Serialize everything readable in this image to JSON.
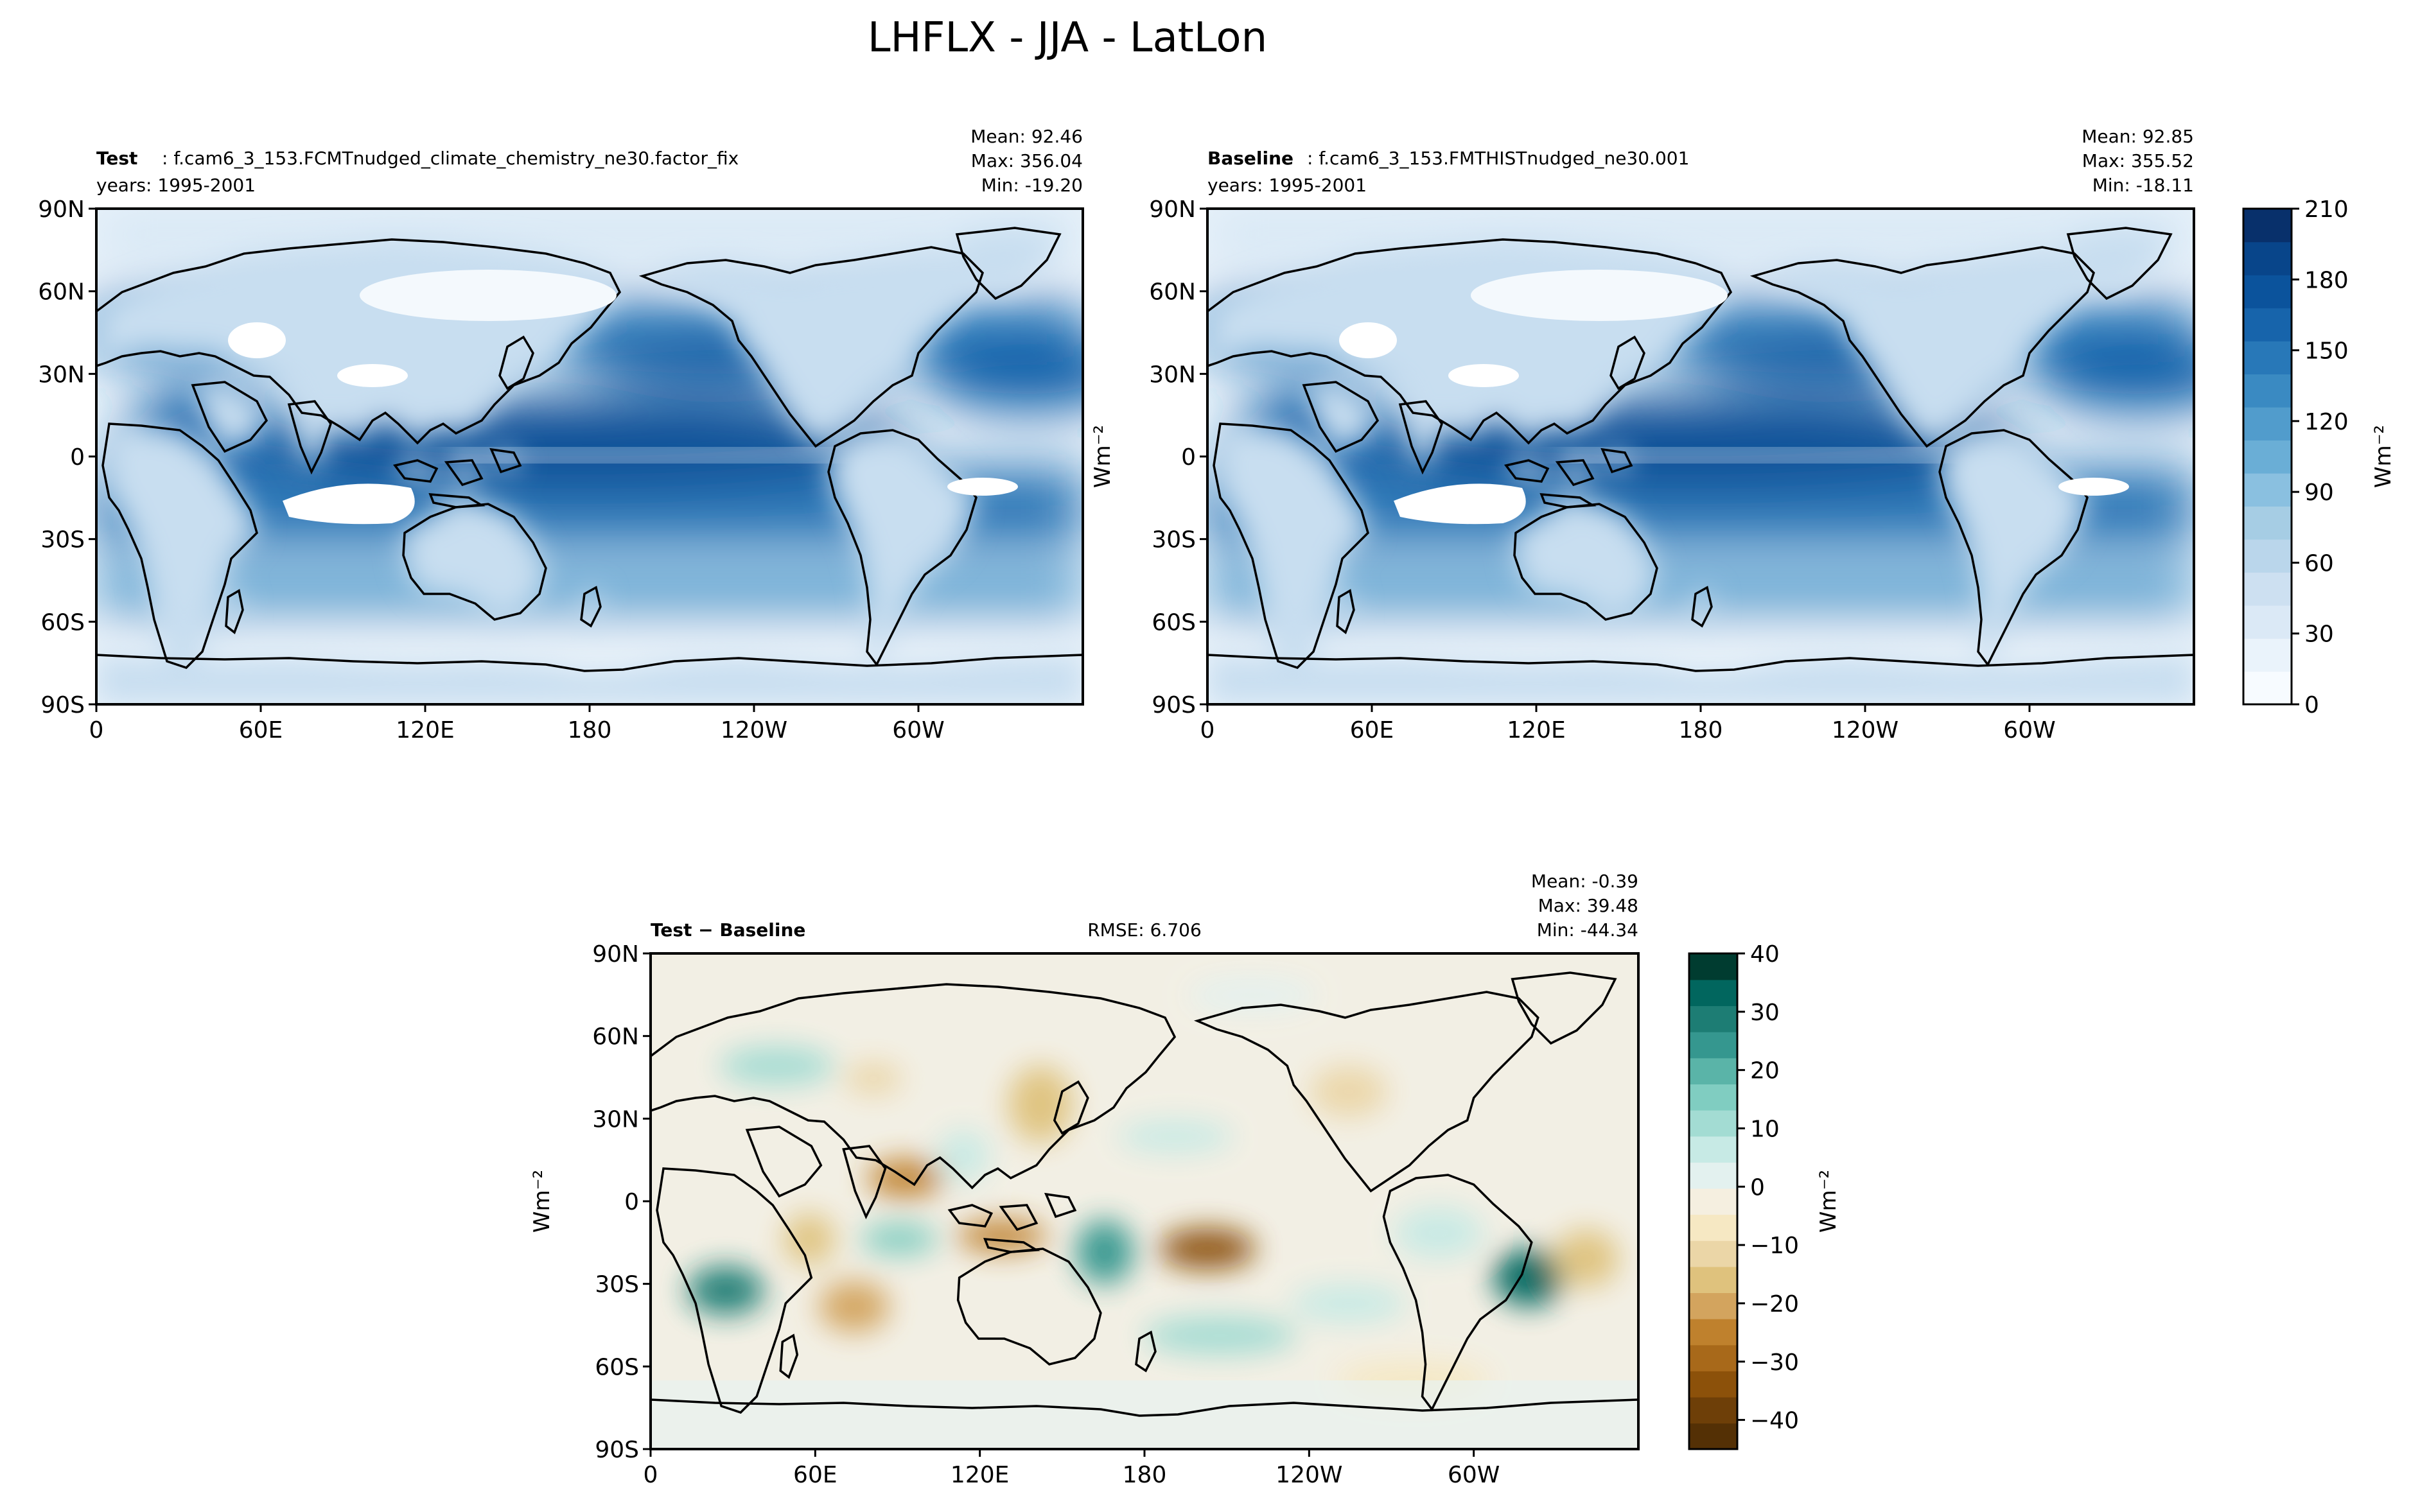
{
  "title": "LHFLX - JJA - LatLon",
  "panels": [
    {
      "id": "test",
      "label_bold": "Test",
      "label_rest": ": f.cam6_3_153.FCMTnudged_climate_chemistry_ne30.factor_fix",
      "years": "years: 1995-2001",
      "stats": [
        "Mean: 92.46",
        "Max: 356.04",
        "Min: -19.20"
      ],
      "ylabel": ""
    },
    {
      "id": "baseline",
      "label_bold": "Baseline",
      "label_rest": ": f.cam6_3_153.FMTHISTnudged_ne30.001",
      "years": "years: 1995-2001",
      "stats": [
        "Mean: 92.85",
        "Max: 355.52",
        "Min: -18.11"
      ],
      "ylabel": "Wm⁻²"
    },
    {
      "id": "diff",
      "label_bold": "Test − Baseline",
      "label_rest": "",
      "years": "",
      "rmse": "RMSE: 6.706",
      "stats": [
        "Mean: -0.39",
        "Max: 39.48",
        "Min: -44.34"
      ],
      "ylabel": "Wm⁻²"
    }
  ],
  "colorbars": [
    {
      "id": "top",
      "label": "Wm⁻²",
      "vmin": 0,
      "vmax": 210,
      "levels": 21,
      "ticks": [
        "0",
        "30",
        "60",
        "90",
        "120",
        "150",
        "180",
        "210"
      ],
      "colors": [
        "#f7fbff",
        "#eaf3fb",
        "#dbe9f6",
        "#cde0f1",
        "#bad6eb",
        "#a6cde4",
        "#8ac0e0",
        "#6aaed6",
        "#519ccc",
        "#3a8ac2",
        "#2878b8",
        "#1764ab",
        "#0b539c",
        "#08458a",
        "#08306b"
      ]
    },
    {
      "id": "diff",
      "label": "Wm⁻²",
      "vmin": -45,
      "vmax": 40,
      "ticks": [
        "−40",
        "−30",
        "−20",
        "−10",
        "0",
        "10",
        "20",
        "30",
        "40"
      ],
      "tick_values": [
        -40,
        -30,
        -20,
        -10,
        0,
        10,
        20,
        30,
        40
      ],
      "colors": [
        "#543005",
        "#6e3f08",
        "#8c510a",
        "#a8691a",
        "#bf812d",
        "#d3a45e",
        "#dfc27d",
        "#ebd6a7",
        "#f6e8c3",
        "#f5efe0",
        "#e3f1ef",
        "#c7eae5",
        "#a3dcd3",
        "#80cdc1",
        "#5ab4a8",
        "#35978f",
        "#1d7d74",
        "#01665e",
        "#003c30"
      ]
    }
  ],
  "chart_data": [
    {
      "type": "heatmap",
      "title": "Test: f.cam6_3_153.FCMTnudged_climate_chemistry_ne30.factor_fix",
      "variable": "LHFLX",
      "season": "JJA",
      "units": "Wm⁻²",
      "x_ticks": [
        "0",
        "60E",
        "120E",
        "180",
        "120W",
        "60W"
      ],
      "x_values": [
        0,
        60,
        120,
        180,
        240,
        300
      ],
      "xlim": [
        0,
        360
      ],
      "y_ticks": [
        "90N",
        "60N",
        "30N",
        "0",
        "30S",
        "60S",
        "90S"
      ],
      "y_values": [
        90,
        60,
        30,
        0,
        -30,
        -60,
        -90
      ],
      "ylim": [
        -90,
        90
      ],
      "mean": 92.46,
      "max": 356.04,
      "min": -19.2,
      "color_range": [
        0,
        210
      ]
    },
    {
      "type": "heatmap",
      "title": "Baseline: f.cam6_3_153.FMTHISTnudged_ne30.001",
      "variable": "LHFLX",
      "season": "JJA",
      "units": "Wm⁻²",
      "x_ticks": [
        "0",
        "60E",
        "120E",
        "180",
        "120W",
        "60W"
      ],
      "x_values": [
        0,
        60,
        120,
        180,
        240,
        300
      ],
      "xlim": [
        0,
        360
      ],
      "y_ticks": [
        "90N",
        "60N",
        "30N",
        "0",
        "30S",
        "60S",
        "90S"
      ],
      "y_values": [
        90,
        60,
        30,
        0,
        -30,
        -60,
        -90
      ],
      "ylim": [
        -90,
        90
      ],
      "mean": 92.85,
      "max": 355.52,
      "min": -18.11,
      "color_range": [
        0,
        210
      ]
    },
    {
      "type": "heatmap",
      "title": "Test − Baseline",
      "variable": "LHFLX difference",
      "season": "JJA",
      "units": "Wm⁻²",
      "x_ticks": [
        "0",
        "60E",
        "120E",
        "180",
        "120W",
        "60W"
      ],
      "x_values": [
        0,
        60,
        120,
        180,
        240,
        300
      ],
      "xlim": [
        0,
        360
      ],
      "y_ticks": [
        "90N",
        "60N",
        "30N",
        "0",
        "30S",
        "60S",
        "90S"
      ],
      "y_values": [
        90,
        60,
        30,
        0,
        -30,
        -60,
        -90
      ],
      "ylim": [
        -90,
        90
      ],
      "mean": -0.39,
      "max": 39.48,
      "min": -44.34,
      "rmse": 6.706,
      "color_range": [
        -45,
        40
      ]
    }
  ]
}
